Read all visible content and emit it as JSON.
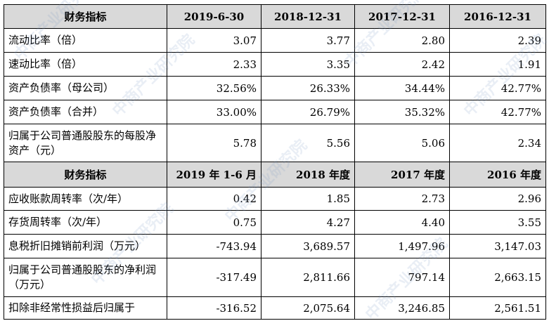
{
  "header1": {
    "label": "财务指标",
    "cols": [
      "2019-6-30",
      "2018-12-31",
      "2017-12-31",
      "2016-12-31"
    ]
  },
  "rows1": [
    {
      "label": "流动比率（倍）",
      "values": [
        "3.07",
        "3.77",
        "2.80",
        "2.39"
      ]
    },
    {
      "label": "速动比率（倍）",
      "values": [
        "2.33",
        "3.35",
        "2.42",
        "1.91"
      ]
    },
    {
      "label": "资产负债率（母公司）",
      "values": [
        "32.56%",
        "26.33%",
        "34.44%",
        "42.77%"
      ]
    },
    {
      "label": "资产负债率（合并）",
      "values": [
        "33.00%",
        "26.79%",
        "35.32%",
        "42.77%"
      ]
    },
    {
      "label": "归属于公司普通股股东的每股净资产（元）",
      "values": [
        "5.78",
        "5.56",
        "5.06",
        "2.34"
      ]
    }
  ],
  "header2": {
    "label": "财务指标",
    "cols": [
      "2019 年 1-6 月",
      "2018 年度",
      "2017 年度",
      "2016 年度"
    ]
  },
  "rows2": [
    {
      "label": "应收账款周转率（次/年）",
      "values": [
        "0.42",
        "1.85",
        "2.73",
        "2.96"
      ]
    },
    {
      "label": "存货周转率（次/年）",
      "values": [
        "0.75",
        "4.27",
        "4.40",
        "3.55"
      ]
    },
    {
      "label": "息税折旧摊销前利润（万元）",
      "values": [
        "-743.94",
        "3,689.57",
        "1,497.96",
        "3,147.03"
      ]
    },
    {
      "label": "归属于公司普通股股东的净利润（万元）",
      "values": [
        "-317.49",
        "2,811.66",
        "797.14",
        "2,663.15"
      ]
    },
    {
      "label": "扣除非经常性损益后归属于",
      "values": [
        "-316.52",
        "2,075.64",
        "3,246.85",
        "2,561.51"
      ]
    }
  ],
  "watermark": "中商产业研究院"
}
